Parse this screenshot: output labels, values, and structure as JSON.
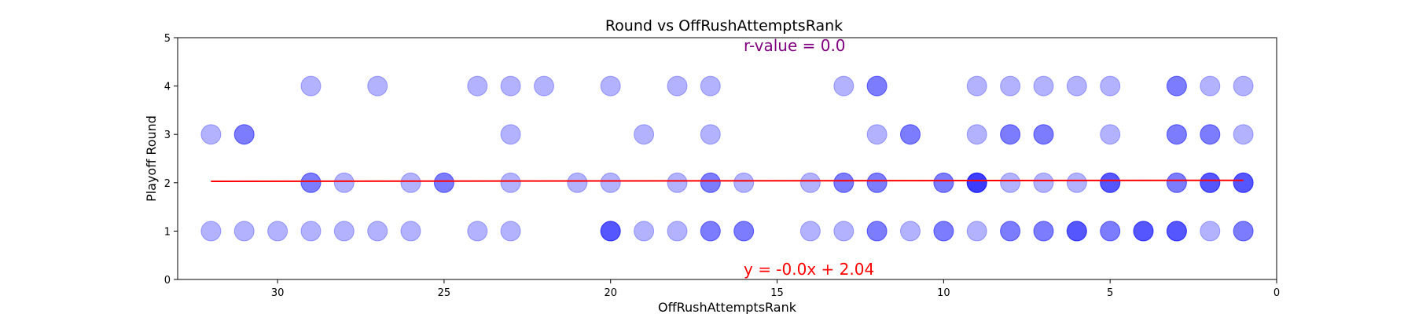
{
  "chart_data": {
    "type": "scatter",
    "title": "Round vs OffRushAttemptsRank",
    "xlabel": "OffRushAttemptsRank",
    "ylabel": "Playoff Round",
    "xlim": [
      33,
      0
    ],
    "ylim": [
      0,
      5
    ],
    "x_inverted": true,
    "xticks": [
      30,
      25,
      20,
      15,
      10,
      5,
      0
    ],
    "yticks": [
      0,
      1,
      2,
      3,
      4,
      5
    ],
    "grid": false,
    "marker_color": "#0000ff",
    "marker_alpha": 0.3,
    "points": [
      [
        32,
        1
      ],
      [
        31,
        1
      ],
      [
        30,
        1
      ],
      [
        29,
        1
      ],
      [
        28,
        1
      ],
      [
        27,
        1
      ],
      [
        26,
        1
      ],
      [
        24,
        1
      ],
      [
        23,
        1
      ],
      [
        20,
        1
      ],
      [
        20,
        1
      ],
      [
        20,
        1
      ],
      [
        19,
        1
      ],
      [
        18,
        1
      ],
      [
        17,
        1
      ],
      [
        17,
        1
      ],
      [
        16,
        1
      ],
      [
        16,
        1
      ],
      [
        14,
        1
      ],
      [
        13,
        1
      ],
      [
        12,
        1
      ],
      [
        12,
        1
      ],
      [
        11,
        1
      ],
      [
        10,
        1
      ],
      [
        10,
        1
      ],
      [
        9,
        1
      ],
      [
        8,
        1
      ],
      [
        8,
        1
      ],
      [
        7,
        1
      ],
      [
        7,
        1
      ],
      [
        6,
        1
      ],
      [
        6,
        1
      ],
      [
        6,
        1
      ],
      [
        5,
        1
      ],
      [
        5,
        1
      ],
      [
        4,
        1
      ],
      [
        4,
        1
      ],
      [
        4,
        1
      ],
      [
        3,
        1
      ],
      [
        3,
        1
      ],
      [
        3,
        1
      ],
      [
        2,
        1
      ],
      [
        1,
        1
      ],
      [
        1,
        1
      ],
      [
        29,
        2
      ],
      [
        29,
        2
      ],
      [
        28,
        2
      ],
      [
        26,
        2
      ],
      [
        25,
        2
      ],
      [
        25,
        2
      ],
      [
        23,
        2
      ],
      [
        21,
        2
      ],
      [
        20,
        2
      ],
      [
        18,
        2
      ],
      [
        17,
        2
      ],
      [
        17,
        2
      ],
      [
        16,
        2
      ],
      [
        14,
        2
      ],
      [
        13,
        2
      ],
      [
        13,
        2
      ],
      [
        12,
        2
      ],
      [
        12,
        2
      ],
      [
        10,
        2
      ],
      [
        10,
        2
      ],
      [
        9,
        2
      ],
      [
        9,
        2
      ],
      [
        9,
        2
      ],
      [
        9,
        2
      ],
      [
        8,
        2
      ],
      [
        7,
        2
      ],
      [
        6,
        2
      ],
      [
        5,
        2
      ],
      [
        5,
        2
      ],
      [
        5,
        2
      ],
      [
        3,
        2
      ],
      [
        3,
        2
      ],
      [
        2,
        2
      ],
      [
        2,
        2
      ],
      [
        2,
        2
      ],
      [
        1,
        2
      ],
      [
        1,
        2
      ],
      [
        1,
        2
      ],
      [
        32,
        3
      ],
      [
        31,
        3
      ],
      [
        31,
        3
      ],
      [
        23,
        3
      ],
      [
        19,
        3
      ],
      [
        17,
        3
      ],
      [
        12,
        3
      ],
      [
        11,
        3
      ],
      [
        11,
        3
      ],
      [
        9,
        3
      ],
      [
        8,
        3
      ],
      [
        8,
        3
      ],
      [
        7,
        3
      ],
      [
        7,
        3
      ],
      [
        5,
        3
      ],
      [
        3,
        3
      ],
      [
        3,
        3
      ],
      [
        2,
        3
      ],
      [
        2,
        3
      ],
      [
        1,
        3
      ],
      [
        29,
        4
      ],
      [
        27,
        4
      ],
      [
        24,
        4
      ],
      [
        23,
        4
      ],
      [
        22,
        4
      ],
      [
        20,
        4
      ],
      [
        18,
        4
      ],
      [
        17,
        4
      ],
      [
        13,
        4
      ],
      [
        12,
        4
      ],
      [
        12,
        4
      ],
      [
        9,
        4
      ],
      [
        8,
        4
      ],
      [
        7,
        4
      ],
      [
        6,
        4
      ],
      [
        5,
        4
      ],
      [
        3,
        4
      ],
      [
        3,
        4
      ],
      [
        2,
        4
      ],
      [
        1,
        4
      ]
    ],
    "regression": {
      "x_range": [
        32,
        1
      ],
      "slope": -0.0,
      "intercept": 2.04,
      "y_at_x_start": 2.03,
      "y_at_x_end": 2.05,
      "color": "#ff0000",
      "equation_label": "y = -0.0x + 2.04"
    },
    "r_label": "r-value = 0.0",
    "r_label_color": "#800080"
  }
}
